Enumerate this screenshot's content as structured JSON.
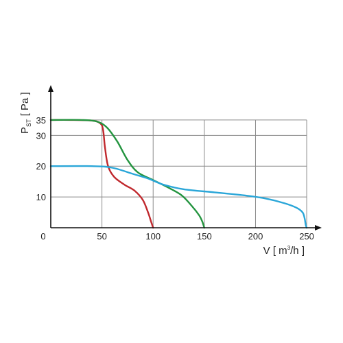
{
  "chart_data": {
    "type": "line",
    "xlabel": {
      "main": "V [ m",
      "sup": "3",
      "tail": "/h ]"
    },
    "ylabel": {
      "main": "P",
      "sub": "ST",
      "tail": " [ Pa ]"
    },
    "xlim": [
      0,
      260
    ],
    "ylim": [
      0,
      45
    ],
    "origin_label": "0",
    "x_ticks": [
      {
        "value": 50,
        "label": "50"
      },
      {
        "value": 100,
        "label": "100"
      },
      {
        "value": 150,
        "label": "150"
      },
      {
        "value": 200,
        "label": "200"
      },
      {
        "value": 250,
        "label": "250"
      }
    ],
    "y_ticks": [
      {
        "value": 10,
        "label": "10"
      },
      {
        "value": 20,
        "label": "20"
      },
      {
        "value": 30,
        "label": "30"
      },
      {
        "value": 35,
        "label": "35"
      }
    ],
    "grid": true,
    "series": [
      {
        "color": "#c0282d",
        "points": [
          [
            0,
            35
          ],
          [
            20,
            35
          ],
          [
            40,
            34.8
          ],
          [
            48,
            34
          ],
          [
            51,
            32
          ],
          [
            53,
            26
          ],
          [
            56,
            20
          ],
          [
            62,
            16.5
          ],
          [
            72,
            14
          ],
          [
            82,
            12
          ],
          [
            90,
            9
          ],
          [
            95,
            5
          ],
          [
            98,
            2
          ],
          [
            100,
            0
          ]
        ]
      },
      {
        "color": "#23943f",
        "points": [
          [
            0,
            35
          ],
          [
            30,
            35
          ],
          [
            45,
            34.5
          ],
          [
            55,
            32.5
          ],
          [
            65,
            28
          ],
          [
            75,
            22
          ],
          [
            85,
            18
          ],
          [
            100,
            15.5
          ],
          [
            115,
            13
          ],
          [
            128,
            10.5
          ],
          [
            138,
            7
          ],
          [
            145,
            4
          ],
          [
            148,
            2
          ],
          [
            150,
            0
          ]
        ]
      },
      {
        "color": "#2aa6d8",
        "points": [
          [
            0,
            20
          ],
          [
            40,
            20
          ],
          [
            60,
            19.5
          ],
          [
            80,
            17.5
          ],
          [
            95,
            16
          ],
          [
            110,
            14
          ],
          [
            130,
            12.5
          ],
          [
            160,
            11.5
          ],
          [
            190,
            10.5
          ],
          [
            210,
            9.5
          ],
          [
            228,
            8
          ],
          [
            240,
            6.5
          ],
          [
            246,
            5
          ],
          [
            248,
            3
          ],
          [
            249,
            1
          ],
          [
            250,
            0
          ]
        ]
      }
    ]
  }
}
